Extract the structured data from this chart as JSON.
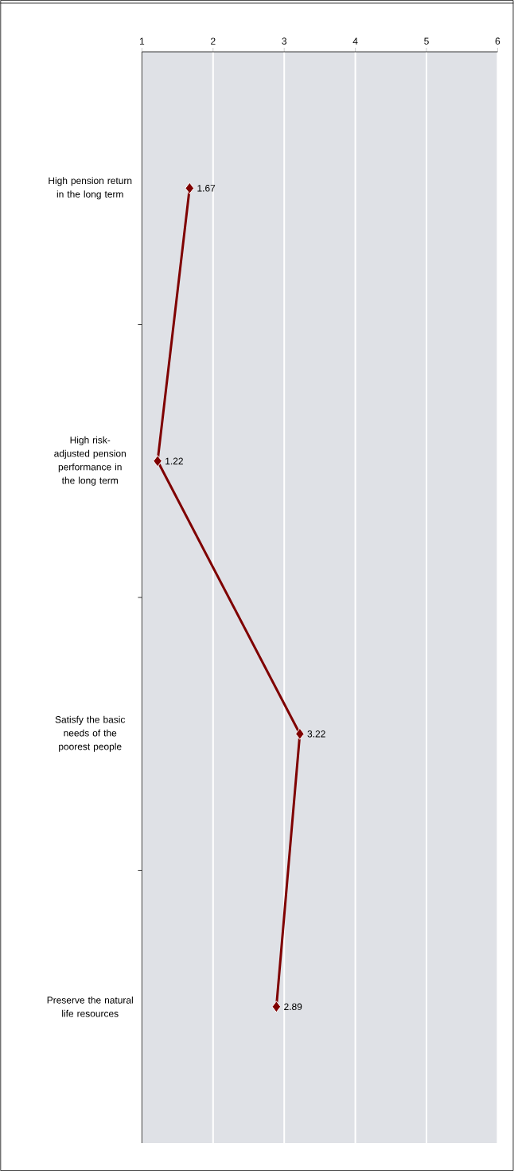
{
  "chart_data": {
    "type": "line",
    "orientation": "horizontal",
    "categories": [
      "High pension return in the long term",
      "High risk-adjusted pension performance in the long term",
      "Satisfy the basic needs of the poorest people",
      "Preserve the natural life resources"
    ],
    "values": [
      1.67,
      1.22,
      3.22,
      2.89
    ],
    "color": "#7f0000",
    "xlim": [
      1,
      6
    ],
    "xticks": [
      1,
      2,
      3,
      4,
      5,
      6
    ],
    "grid": "x",
    "marker": "diamond",
    "line_style": "solid",
    "data_labels": true
  }
}
